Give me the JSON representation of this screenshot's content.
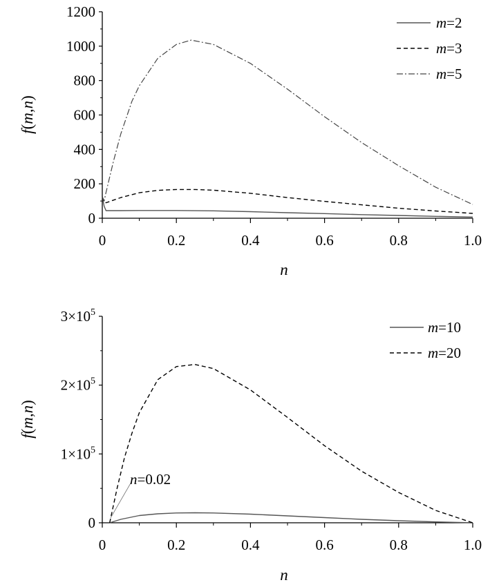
{
  "chart_data": [
    {
      "type": "line",
      "xlabel": "n",
      "ylabel": "f(m,n)",
      "xlim": [
        0,
        1.0
      ],
      "ylim": [
        0,
        1200
      ],
      "x_ticks": [
        "0",
        "0.2",
        "0.4",
        "0.6",
        "0.8",
        "1.0"
      ],
      "y_ticks": [
        "0",
        "200",
        "400",
        "600",
        "800",
        "1000",
        "1200"
      ],
      "grid": false,
      "legend": "top-right",
      "series": [
        {
          "name": "m=2",
          "style": "solid",
          "x": [
            0.0,
            0.005,
            0.01,
            0.05,
            0.1,
            0.2,
            0.3,
            0.4,
            0.5,
            0.6,
            0.7,
            0.8,
            0.9,
            1.0
          ],
          "y": [
            125,
            70,
            44,
            44,
            45,
            45,
            43,
            38,
            32,
            27,
            21,
            16,
            11,
            7
          ]
        },
        {
          "name": "m=3",
          "style": "dashed",
          "x": [
            0.0,
            0.005,
            0.01,
            0.05,
            0.1,
            0.15,
            0.2,
            0.25,
            0.3,
            0.4,
            0.5,
            0.6,
            0.7,
            0.8,
            0.9,
            1.0
          ],
          "y": [
            125,
            95,
            90,
            120,
            148,
            162,
            167,
            167,
            163,
            145,
            120,
            98,
            78,
            58,
            42,
            28
          ]
        },
        {
          "name": "m=5",
          "style": "dashdot",
          "x": [
            0.0,
            0.005,
            0.01,
            0.03,
            0.05,
            0.08,
            0.1,
            0.15,
            0.2,
            0.24,
            0.3,
            0.4,
            0.5,
            0.6,
            0.7,
            0.8,
            0.9,
            1.0
          ],
          "y": [
            125,
            100,
            150,
            330,
            490,
            680,
            770,
            930,
            1010,
            1035,
            1010,
            900,
            750,
            590,
            440,
            305,
            180,
            80
          ]
        }
      ]
    },
    {
      "type": "line",
      "xlabel": "n",
      "ylabel": "f(m,n)",
      "xlim": [
        0,
        1.0
      ],
      "ylim": [
        0,
        300000
      ],
      "x_ticks": [
        "0",
        "0.2",
        "0.4",
        "0.6",
        "0.8",
        "1.0"
      ],
      "y_ticks": [
        "0",
        "1×10",
        "2×10",
        "3×10"
      ],
      "y_tick_exponent": "5",
      "grid": false,
      "legend": "top-right",
      "annotation": {
        "text": "n=0.02",
        "x": 0.02,
        "y": 0
      },
      "series": [
        {
          "name": "m=10",
          "style": "solid",
          "x": [
            0.02,
            0.05,
            0.1,
            0.15,
            0.2,
            0.25,
            0.3,
            0.4,
            0.5,
            0.6,
            0.7,
            0.8,
            0.9,
            1.0
          ],
          "y": [
            0,
            5000,
            10500,
            13000,
            14200,
            14500,
            14200,
            12500,
            10000,
            7500,
            5000,
            3000,
            1300,
            0
          ]
        },
        {
          "name": "m=20",
          "style": "dashed",
          "x": [
            0.02,
            0.04,
            0.06,
            0.08,
            0.1,
            0.15,
            0.2,
            0.25,
            0.3,
            0.4,
            0.5,
            0.6,
            0.7,
            0.8,
            0.9,
            1.0
          ],
          "y": [
            0,
            50000,
            95000,
            130000,
            160000,
            208000,
            227000,
            230000,
            224000,
            193000,
            153000,
            112000,
            75000,
            44000,
            18000,
            0
          ]
        }
      ]
    }
  ]
}
